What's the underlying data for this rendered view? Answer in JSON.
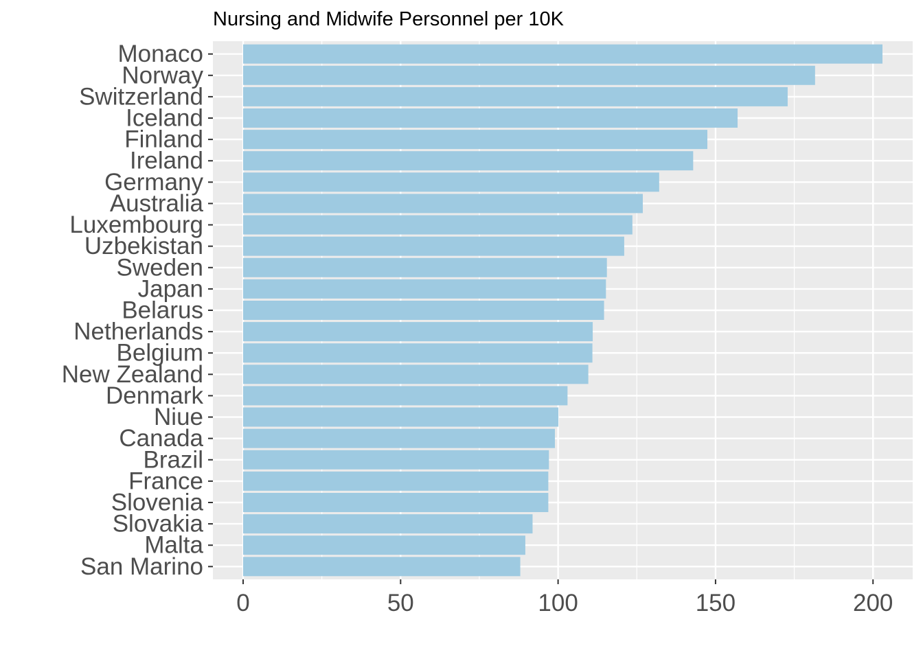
{
  "chart_data": {
    "type": "bar",
    "orientation": "horizontal",
    "title": "Nursing and Midwife Personnel per 10K",
    "xlabel": "",
    "ylabel": "",
    "xlim": [
      -9.6,
      212.6
    ],
    "x_ticks": [
      0,
      50,
      100,
      150,
      200
    ],
    "x_minor_ticks": [
      25,
      75,
      125,
      175
    ],
    "grid": true,
    "bar_color": "#9ecae1",
    "panel_color": "#ebebeb",
    "categories": [
      "Monaco",
      "Norway",
      "Switzerland",
      "Iceland",
      "Finland",
      "Ireland",
      "Germany",
      "Australia",
      "Luxembourg",
      "Uzbekistan",
      "Sweden",
      "Japan",
      "Belarus",
      "Netherlands",
      "Belgium",
      "New Zealand",
      "Denmark",
      "Niue",
      "Canada",
      "Brazil",
      "France",
      "Slovenia",
      "Slovakia",
      "Malta",
      "San Marino"
    ],
    "values": [
      203.0,
      181.6,
      172.9,
      157.0,
      147.4,
      142.9,
      132.1,
      126.9,
      123.6,
      121.0,
      115.5,
      115.2,
      114.6,
      111.0,
      110.9,
      109.6,
      103.0,
      100.1,
      99.0,
      97.1,
      96.9,
      96.9,
      91.9,
      89.6,
      88.0
    ]
  }
}
